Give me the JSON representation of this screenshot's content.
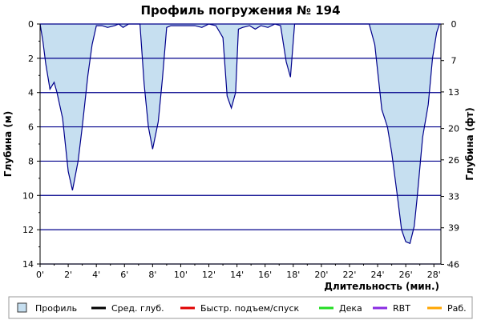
{
  "chart_data": {
    "type": "area",
    "title": "Профиль погружения № 194",
    "xlabel": "Длительность (мин.)",
    "ylabel": "Глубина (м)",
    "ylabel_right": "Глубина (фт)",
    "xlim": [
      0,
      28.5
    ],
    "ylim": [
      0,
      14
    ],
    "y_inverted": true,
    "grid": "horizontal",
    "x_ticks": [
      0,
      2,
      4,
      6,
      8,
      10,
      12,
      14,
      16,
      18,
      20,
      22,
      24,
      26,
      28
    ],
    "x_tick_labels": [
      "0'",
      "2'",
      "4'",
      "6'",
      "8'",
      "10'",
      "12'",
      "14'",
      "16'",
      "18'",
      "20'",
      "22'",
      "24'",
      "26'",
      "28'"
    ],
    "y_ticks": [
      0,
      2,
      4,
      6,
      8,
      10,
      12,
      14
    ],
    "y_tick_labels": [
      "0",
      "2",
      "4",
      "6",
      "8",
      "10",
      "12",
      "14"
    ],
    "y_right_ticks": [
      0,
      7,
      13,
      20,
      26,
      33,
      39,
      46
    ],
    "y_right_tick_labels": [
      "0",
      "7",
      "13",
      "20",
      "26",
      "33",
      "39",
      "46"
    ],
    "profile_color": "#c6dff0",
    "line_color": "#00008b",
    "grid_color": "#00008b",
    "series": [
      {
        "name": "Профиль",
        "x": [
          0,
          0.2,
          0.4,
          0.7,
          1.0,
          1.2,
          1.6,
          2.0,
          2.3,
          2.4,
          2.7,
          3.0,
          3.4,
          3.7,
          4.0,
          4.4,
          4.8,
          5.3,
          5.6,
          5.9,
          6.3,
          6.8,
          7.1,
          7.4,
          7.7,
          8.0,
          8.4,
          8.7,
          9.0,
          9.3,
          10.0,
          11.0,
          11.5,
          12.0,
          12.5,
          13.0,
          13.3,
          13.6,
          13.9,
          14.1,
          14.4,
          14.9,
          15.3,
          15.7,
          16.2,
          16.7,
          17.1,
          17.5,
          17.8,
          18.1,
          18.5,
          20.0,
          22.0,
          23.4,
          23.8,
          24.3,
          24.7,
          25.0,
          25.4,
          25.7,
          26.0,
          26.3,
          26.6,
          26.8,
          27.2,
          27.6,
          27.9,
          28.2,
          28.4
        ],
        "y": [
          0,
          1.0,
          2.3,
          3.8,
          3.4,
          4.0,
          5.5,
          8.6,
          9.7,
          9.3,
          8.0,
          6.0,
          3.0,
          1.2,
          0.1,
          0.1,
          0.2,
          0.1,
          0.0,
          0.2,
          0.0,
          0.0,
          0.0,
          3.5,
          6.0,
          7.3,
          5.7,
          3.2,
          0.2,
          0.1,
          0.1,
          0.1,
          0.2,
          0.0,
          0.1,
          0.8,
          4.2,
          4.9,
          4.0,
          0.3,
          0.2,
          0.1,
          0.3,
          0.1,
          0.2,
          0.0,
          0.1,
          2.2,
          3.1,
          0.0,
          0.0,
          0.0,
          0.0,
          0.0,
          1.2,
          5.0,
          6.0,
          7.5,
          10.0,
          12.0,
          12.7,
          12.8,
          11.8,
          10.2,
          6.6,
          4.7,
          2.0,
          0.5,
          0.0
        ]
      }
    ],
    "legend_position": "bottom",
    "legend": [
      {
        "label": "Профиль",
        "kind": "box",
        "color": "#c6dff0"
      },
      {
        "label": "Сред. глуб.",
        "kind": "line",
        "color": "#000000"
      },
      {
        "label": "Быстр. подъем/спуск",
        "kind": "line",
        "color": "#e00000"
      },
      {
        "label": "Дека",
        "kind": "line",
        "color": "#22dd22"
      },
      {
        "label": "RBT",
        "kind": "line",
        "color": "#8a2be2"
      },
      {
        "label": "Раб.",
        "kind": "line",
        "color": "#ffa500"
      }
    ]
  }
}
